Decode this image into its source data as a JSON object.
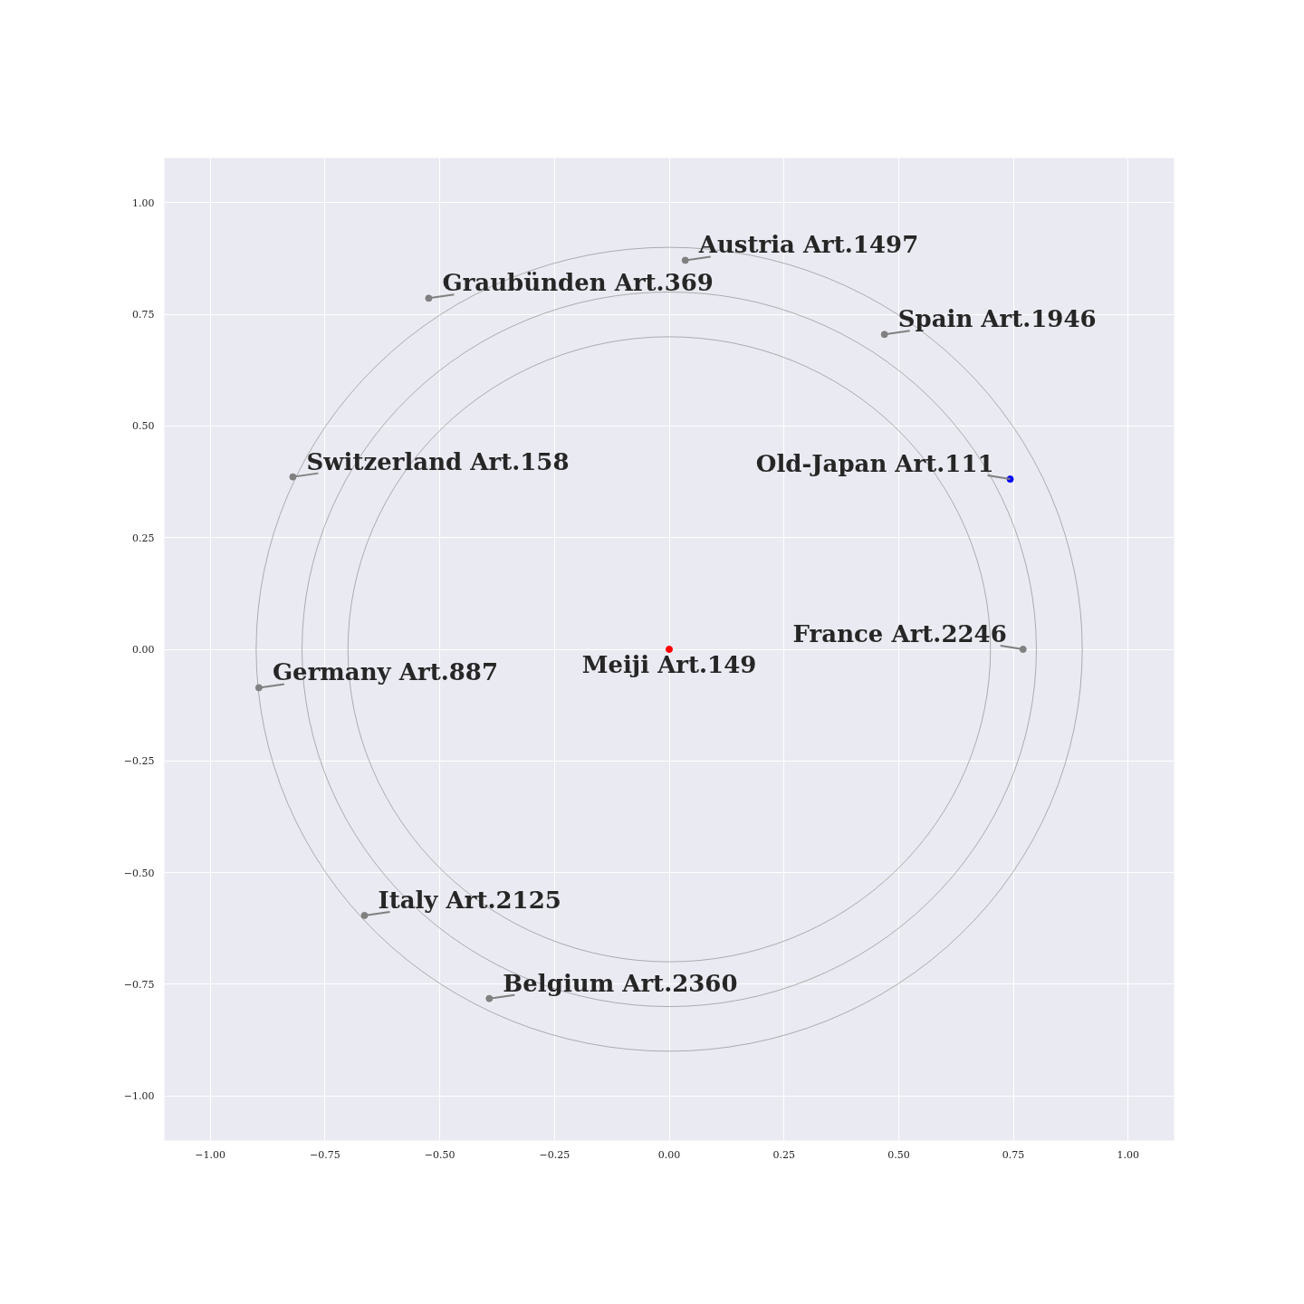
{
  "chart_data": {
    "type": "scatter",
    "xlim": [
      -1.1,
      1.1
    ],
    "ylim": [
      -1.1,
      1.1
    ],
    "xticks": [
      {
        "value": -1,
        "label": "−1.00"
      },
      {
        "value": -0.75,
        "label": "−0.75"
      },
      {
        "value": -0.5,
        "label": "−0.50"
      },
      {
        "value": -0.25,
        "label": "−0.25"
      },
      {
        "value": 0,
        "label": "0.00"
      },
      {
        "value": 0.25,
        "label": "0.25"
      },
      {
        "value": 0.5,
        "label": "0.50"
      },
      {
        "value": 0.75,
        "label": "0.75"
      },
      {
        "value": 1,
        "label": "1.00"
      }
    ],
    "yticks": [
      {
        "value": -1,
        "label": "−1.00"
      },
      {
        "value": -0.75,
        "label": "−0.75"
      },
      {
        "value": -0.5,
        "label": "−0.50"
      },
      {
        "value": -0.25,
        "label": "−0.25"
      },
      {
        "value": 0,
        "label": "0.00"
      },
      {
        "value": 0.25,
        "label": "0.25"
      },
      {
        "value": 0.5,
        "label": "0.50"
      },
      {
        "value": 0.75,
        "label": "0.75"
      },
      {
        "value": 1,
        "label": "1.00"
      }
    ],
    "grid": true,
    "series": [
      {
        "marker": "circle",
        "x": [
          0,
          0.743,
          0.771,
          0.469,
          0.035,
          -0.524,
          -0.82,
          -0.894,
          -0.664,
          -0.392
        ],
        "values": [
          0,
          0.381,
          0,
          0.705,
          0.871,
          0.786,
          0.386,
          -0.086,
          -0.596,
          -0.782
        ],
        "colors": [
          "#ff0000",
          "#0000ff",
          "#808080",
          "#808080",
          "#808080",
          "#808080",
          "#808080",
          "#808080",
          "#808080",
          "#808080"
        ]
      }
    ],
    "annotations": [
      {
        "text": "Meiji Art.149",
        "x": 0,
        "y": 0
      },
      {
        "text": "Old-Japan Art.111",
        "x": 0.743,
        "y": 0.381
      },
      {
        "text": "France Art.2246",
        "x": 0.771,
        "y": 0
      },
      {
        "text": "Spain Art.1946",
        "x": 0.469,
        "y": 0.705
      },
      {
        "text": "Austria Art.1497",
        "x": 0.035,
        "y": 0.871
      },
      {
        "text": "Graubünden Art.369",
        "x": -0.524,
        "y": 0.786
      },
      {
        "text": "Switzerland Art.158",
        "x": -0.82,
        "y": 0.386
      },
      {
        "text": "Germany Art.887",
        "x": -0.894,
        "y": -0.086
      },
      {
        "text": "Italy Art.2125",
        "x": -0.664,
        "y": -0.596
      },
      {
        "text": "Belgium Art.2360",
        "x": -0.392,
        "y": -0.782
      }
    ]
  }
}
